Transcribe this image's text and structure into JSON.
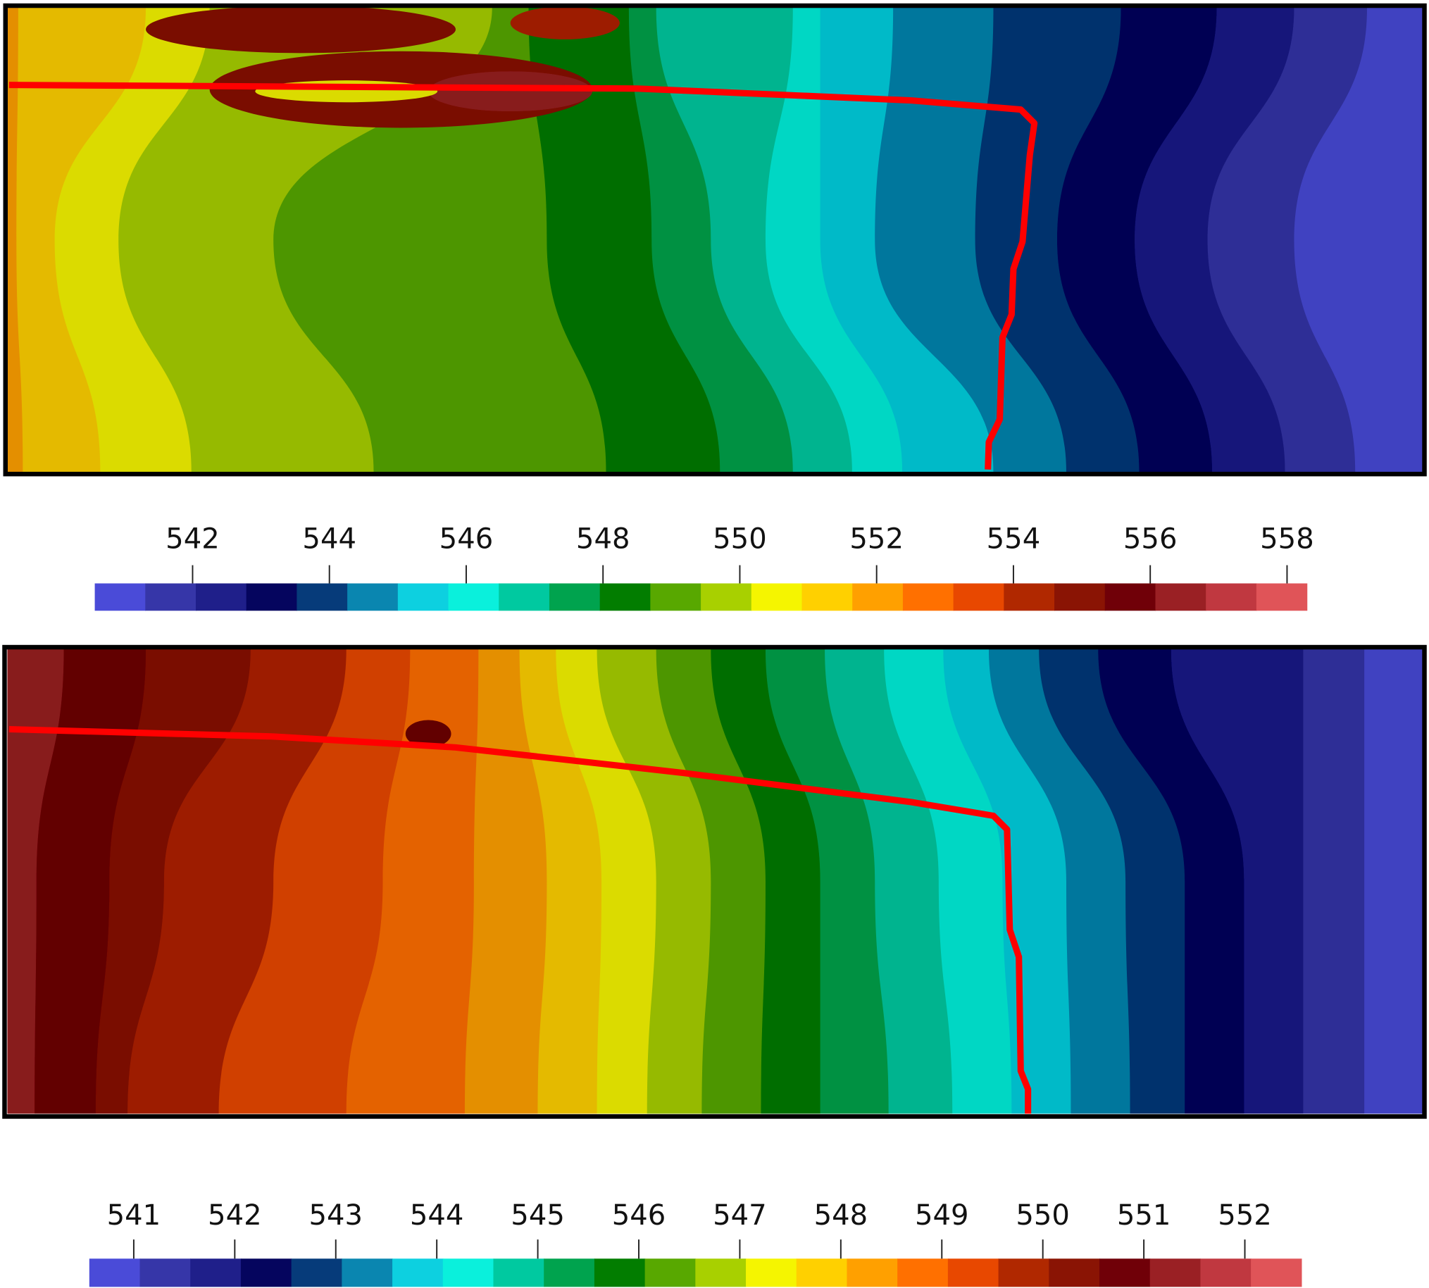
{
  "chart_data": [
    {
      "type": "contour",
      "colors": [
        "#4a4bd8",
        "#3636a8",
        "#1f1f8a",
        "#05055e",
        "#063b7a",
        "#0a86b0",
        "#0dd0e0",
        "#0af0dc",
        "#00c9a0",
        "#00a34e",
        "#027d00",
        "#58a800",
        "#a8d000",
        "#f5f500",
        "#ffd000",
        "#ffa000",
        "#ff7000",
        "#e84800",
        "#b02800",
        "#8a1404",
        "#700008",
        "#9a2024",
        "#c03840",
        "#e05458"
      ],
      "clim": [
        540.57,
        558.29
      ],
      "ticks": [
        542,
        544,
        546,
        548,
        550,
        552,
        554,
        556,
        558
      ]
    },
    {
      "type": "contour",
      "colors": [
        "#4a4bd8",
        "#3636a8",
        "#1f1f8a",
        "#05055e",
        "#063b7a",
        "#0a86b0",
        "#0dd0e0",
        "#0af0dc",
        "#00c9a0",
        "#00a34e",
        "#027d00",
        "#58a800",
        "#a8d000",
        "#f5f500",
        "#ffd000",
        "#ffa000",
        "#ff7000",
        "#e84800",
        "#b02800",
        "#8a1404",
        "#700008",
        "#9a2024",
        "#c03840",
        "#e05458"
      ],
      "clim": [
        540.56,
        552.56
      ],
      "ticks": [
        541,
        542,
        543,
        544,
        545,
        546,
        547,
        548,
        549,
        550,
        551,
        552
      ]
    }
  ]
}
